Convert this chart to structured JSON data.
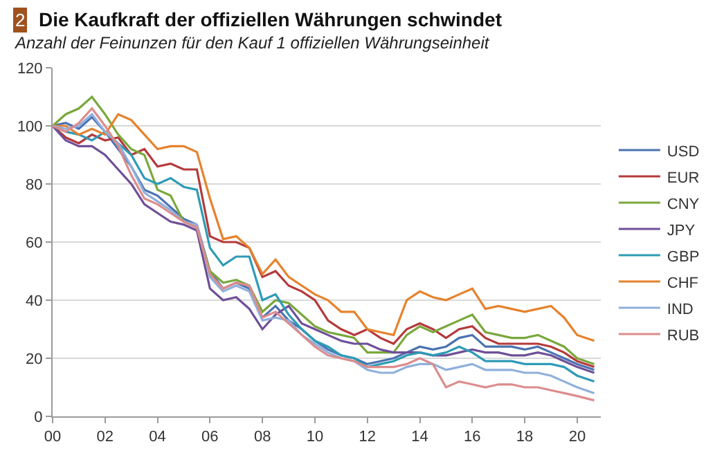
{
  "chart_data": {
    "type": "line",
    "title": "Die Kaufkraft der offiziellen Währungen schwindet",
    "subtitle": "Anzahl der Feinunzen für den Kauf 1 offiziellen Währungseinheit",
    "annotations": [
      "2"
    ],
    "x": [
      0,
      0.5,
      1,
      1.5,
      2,
      2.5,
      3,
      3.5,
      4,
      4.5,
      5,
      5.5,
      6,
      6.5,
      7,
      7.5,
      8,
      8.5,
      9,
      9.5,
      10,
      10.5,
      11,
      11.5,
      12,
      12.5,
      13,
      13.5,
      14,
      14.5,
      15,
      15.5,
      16,
      16.5,
      17,
      17.5,
      18,
      18.5,
      19,
      19.5,
      20,
      20.65
    ],
    "xlim": [
      0,
      20.9
    ],
    "xticks": [
      {
        "value": 0,
        "label": "00"
      },
      {
        "value": 2,
        "label": "02"
      },
      {
        "value": 4,
        "label": "04"
      },
      {
        "value": 6,
        "label": "06"
      },
      {
        "value": 8,
        "label": "08"
      },
      {
        "value": 10,
        "label": "10"
      },
      {
        "value": 12,
        "label": "12"
      },
      {
        "value": 14,
        "label": "14"
      },
      {
        "value": 16,
        "label": "16"
      },
      {
        "value": 18,
        "label": "18"
      },
      {
        "value": 20,
        "label": "20"
      }
    ],
    "ylim": [
      0,
      120
    ],
    "yticks": [
      0,
      20,
      40,
      60,
      80,
      100,
      120
    ],
    "grid": "y",
    "legend": "right",
    "line_style": "solid",
    "marker": "none",
    "series": [
      {
        "name": "USD",
        "color": "#4a72b0",
        "values": [
          100,
          101,
          99,
          103,
          98,
          92,
          86,
          78,
          76,
          72,
          68,
          66,
          50,
          44,
          46,
          44,
          34,
          38,
          33,
          30,
          26,
          23,
          21,
          20,
          18,
          19,
          20,
          22,
          24,
          23,
          24,
          27,
          28,
          24,
          24,
          24,
          23,
          24,
          22,
          20,
          18,
          16
        ]
      },
      {
        "name": "EUR",
        "color": "#b5393b",
        "values": [
          100,
          96,
          94,
          97,
          95,
          96,
          90,
          92,
          86,
          87,
          85,
          85,
          62,
          60,
          60,
          58,
          48,
          50,
          45,
          43,
          40,
          33,
          30,
          28,
          30,
          27,
          25,
          30,
          32,
          30,
          27,
          30,
          31,
          27,
          25,
          25,
          25,
          25,
          24,
          22,
          19,
          17
        ]
      },
      {
        "name": "CNY",
        "color": "#7aa83c",
        "values": [
          100,
          104,
          106,
          110,
          104,
          97,
          92,
          90,
          78,
          76,
          67,
          65,
          50,
          46,
          47,
          45,
          36,
          40,
          39,
          35,
          31,
          29,
          28,
          27,
          22,
          22,
          22,
          28,
          31,
          29,
          31,
          33,
          35,
          29,
          28,
          27,
          27,
          28,
          26,
          24,
          20,
          18
        ]
      },
      {
        "name": "JPY",
        "color": "#6e4f98",
        "values": [
          100,
          95,
          93,
          93,
          90,
          85,
          80,
          73,
          70,
          67,
          66,
          64,
          44,
          40,
          41,
          37,
          30,
          35,
          38,
          32,
          30,
          28,
          26,
          25,
          25,
          23,
          22,
          22,
          22,
          21,
          21,
          22,
          23,
          22,
          22,
          21,
          21,
          22,
          21,
          19,
          17,
          15
        ]
      },
      {
        "name": "GBP",
        "color": "#2e9bb5",
        "values": [
          100,
          98,
          97,
          95,
          98,
          94,
          90,
          82,
          80,
          82,
          79,
          78,
          58,
          52,
          55,
          55,
          40,
          42,
          35,
          30,
          26,
          24,
          21,
          20,
          17,
          18,
          19,
          21,
          22,
          21,
          22,
          24,
          22,
          19,
          19,
          19,
          18,
          18,
          18,
          17,
          14,
          12
        ]
      },
      {
        "name": "CHF",
        "color": "#e6822c",
        "values": [
          100,
          100,
          97,
          99,
          97,
          104,
          102,
          97,
          92,
          93,
          93,
          91,
          75,
          61,
          62,
          58,
          49,
          54,
          48,
          45,
          42,
          40,
          36,
          36,
          30,
          29,
          28,
          40,
          43,
          41,
          40,
          42,
          44,
          37,
          38,
          37,
          36,
          37,
          38,
          34,
          28,
          26
        ]
      },
      {
        "name": "IND",
        "color": "#8fb0dc",
        "values": [
          100,
          99,
          100,
          104,
          98,
          94,
          86,
          77,
          74,
          71,
          67,
          66,
          48,
          43,
          45,
          43,
          33,
          34,
          33,
          28,
          25,
          22,
          20,
          19,
          16,
          15,
          15,
          17,
          18,
          18,
          16,
          17,
          18,
          16,
          16,
          16,
          15,
          15,
          14,
          12,
          10,
          8
        ]
      },
      {
        "name": "RUB",
        "color": "#dc8c8c",
        "values": [
          100,
          98,
          101,
          106,
          100,
          93,
          83,
          75,
          73,
          70,
          67,
          65,
          49,
          44,
          46,
          45,
          34,
          36,
          32,
          28,
          24,
          21,
          20,
          19,
          17,
          17,
          17,
          18,
          20,
          18,
          10,
          12,
          11,
          10,
          11,
          11,
          10,
          10,
          9,
          8,
          7,
          5.5
        ]
      }
    ]
  }
}
